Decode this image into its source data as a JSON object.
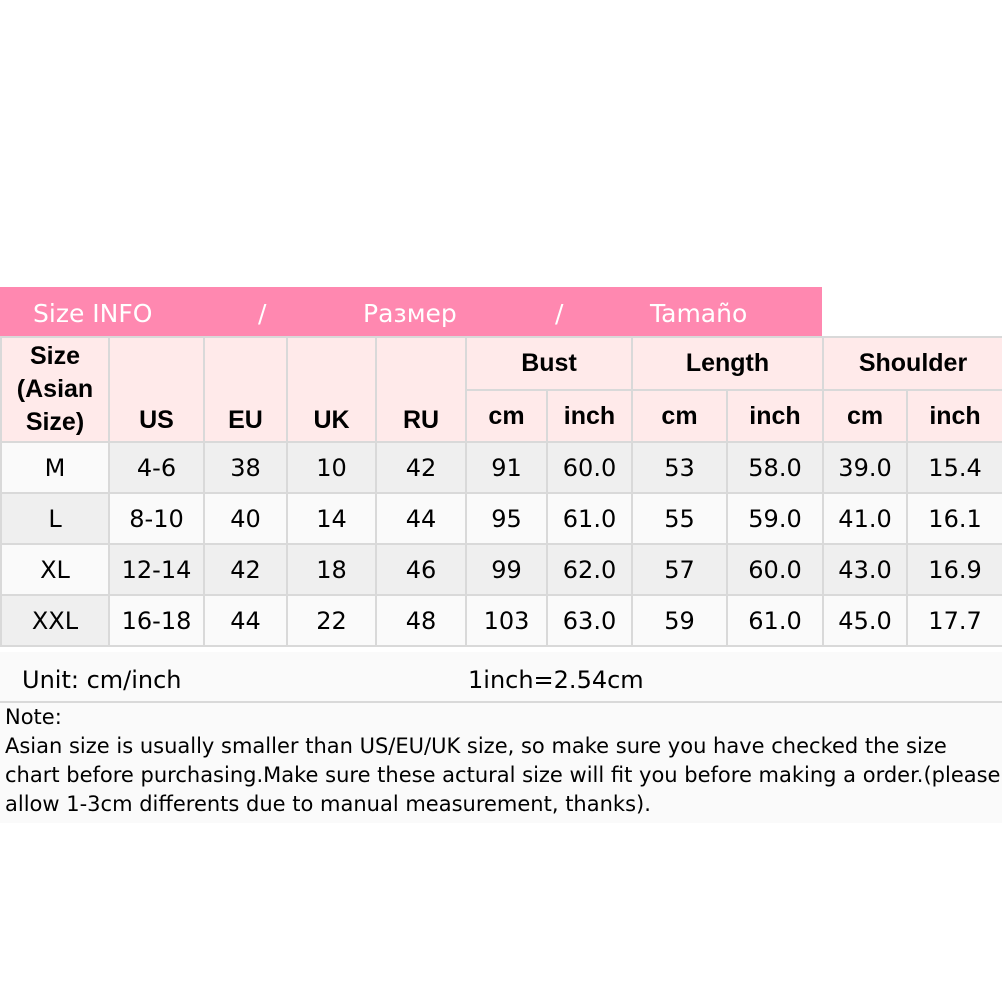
{
  "banner": {
    "en": "Size INFO",
    "sep": "/",
    "ru": "Размер",
    "es": "Tamaño"
  },
  "headers": {
    "size": "Size (Asian Size)",
    "us": "US",
    "eu": "EU",
    "uk": "UK",
    "ru": "RU",
    "bust": "Bust",
    "length": "Length",
    "shoulder": "Shoulder",
    "cm": "cm",
    "inch": "inch"
  },
  "rows": [
    [
      "M",
      "4-6",
      "38",
      "10",
      "42",
      "91",
      "60.0",
      "53",
      "58.0",
      "39.0",
      "15.4"
    ],
    [
      "L",
      "8-10",
      "40",
      "14",
      "44",
      "95",
      "61.0",
      "55",
      "59.0",
      "41.0",
      "16.1"
    ],
    [
      "XL",
      "12-14",
      "42",
      "18",
      "46",
      "99",
      "62.0",
      "57",
      "60.0",
      "43.0",
      "16.9"
    ],
    [
      "XXL",
      "16-18",
      "44",
      "22",
      "48",
      "103",
      "63.0",
      "59",
      "61.0",
      "45.0",
      "17.7"
    ]
  ],
  "unit": {
    "label": "Unit: cm/inch",
    "conversion": "1inch=2.54cm"
  },
  "note": {
    "title": "Note:",
    "text": "Asian size is usually smaller than US/EU/UK size, so make sure you have checked the size chart before purchasing.Make sure these actural size will fit you before making a order.(please allow 1-3cm differents due to manual measurement, thanks)."
  },
  "colors": {
    "banner": "#ff88b0",
    "header_bg": "#ffeaea",
    "row_grey": "#efefef"
  }
}
